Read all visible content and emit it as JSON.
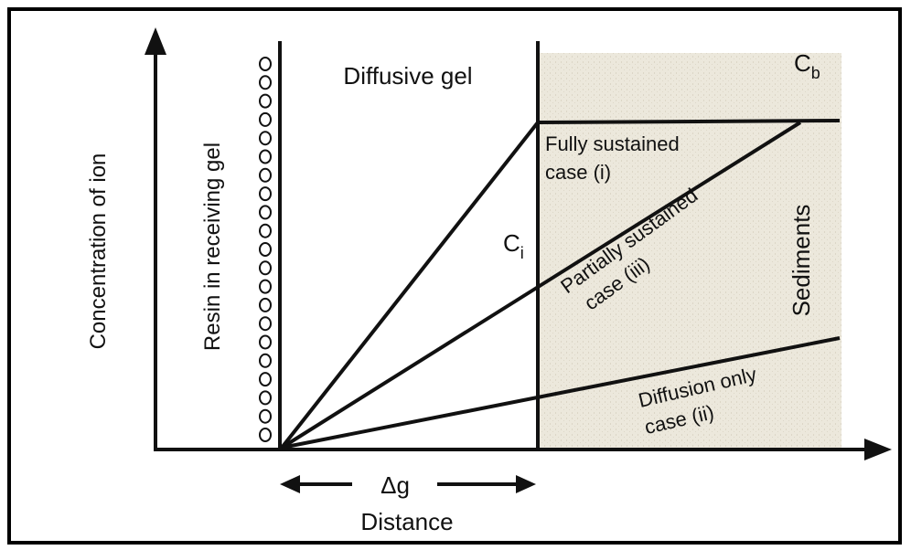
{
  "axes": {
    "y_label": "Concentration of ion",
    "x_label": "Distance",
    "gel_thickness": "Δg"
  },
  "regions": {
    "resin": "Resin in receiving gel",
    "gel": "Diffusive gel",
    "sediments": "Sediments"
  },
  "symbols": {
    "cb": {
      "main": "C",
      "sub": "b"
    },
    "ci": {
      "main": "C",
      "sub": "i"
    }
  },
  "cases": [
    {
      "line1": "Fully sustained",
      "line2": "case (i)"
    },
    {
      "line1": "Partially sustained",
      "line2": "case (iii)"
    },
    {
      "line1": "Diffusion only",
      "line2": "case (ii)"
    }
  ]
}
